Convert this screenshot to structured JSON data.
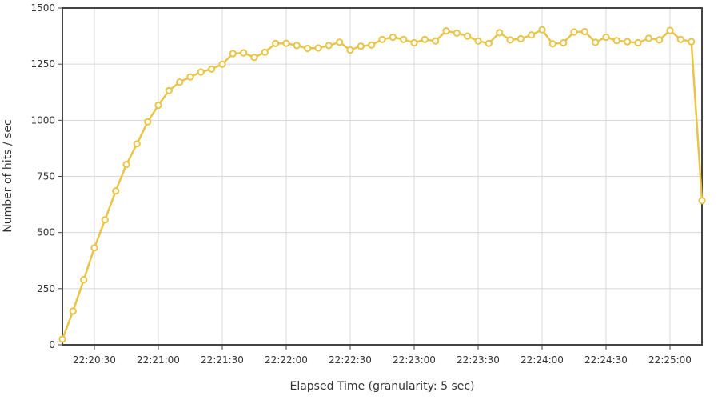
{
  "chart_data": {
    "type": "line",
    "title": "",
    "xlabel": "Elapsed Time (granularity: 5 sec)",
    "ylabel": "Number of hits / sec",
    "ylim": [
      0,
      1500
    ],
    "yticks": [
      "0",
      "250",
      "500",
      "750",
      "1000",
      "1250",
      "1500"
    ],
    "xlim": [
      "22:20:15",
      "22:25:15"
    ],
    "xticks": [
      "22:20:30",
      "22:21:00",
      "22:21:30",
      "22:22:00",
      "22:22:30",
      "22:23:00",
      "22:23:30",
      "22:24:00",
      "22:24:30",
      "22:25:00"
    ],
    "grid": true,
    "legend": "none",
    "series": [
      {
        "color": "#e8c547",
        "x": [
          "22:20:15",
          "22:20:20",
          "22:20:25",
          "22:20:30",
          "22:20:35",
          "22:20:40",
          "22:20:45",
          "22:20:50",
          "22:20:55",
          "22:21:00",
          "22:21:05",
          "22:21:10",
          "22:21:15",
          "22:21:20",
          "22:21:25",
          "22:21:30",
          "22:21:35",
          "22:21:40",
          "22:21:45",
          "22:21:50",
          "22:21:55",
          "22:22:00",
          "22:22:05",
          "22:22:10",
          "22:22:15",
          "22:22:20",
          "22:22:25",
          "22:22:30",
          "22:22:35",
          "22:22:40",
          "22:22:45",
          "22:22:50",
          "22:22:55",
          "22:23:00",
          "22:23:05",
          "22:23:10",
          "22:23:15",
          "22:23:20",
          "22:23:25",
          "22:23:30",
          "22:23:35",
          "22:23:40",
          "22:23:45",
          "22:23:50",
          "22:23:55",
          "22:24:00",
          "22:24:05",
          "22:24:10",
          "22:24:15",
          "22:24:20",
          "22:24:25",
          "22:24:30",
          "22:24:35",
          "22:24:40",
          "22:24:45",
          "22:24:50",
          "22:24:55",
          "22:25:00",
          "22:25:05",
          "22:25:10",
          "22:25:15"
        ],
        "values": [
          25,
          150,
          290,
          432,
          557,
          685,
          803,
          895,
          993,
          1067,
          1132,
          1170,
          1193,
          1215,
          1228,
          1250,
          1297,
          1300,
          1280,
          1303,
          1342,
          1343,
          1333,
          1320,
          1322,
          1333,
          1348,
          1313,
          1330,
          1335,
          1360,
          1370,
          1360,
          1345,
          1360,
          1353,
          1398,
          1388,
          1375,
          1353,
          1342,
          1390,
          1358,
          1363,
          1380,
          1403,
          1340,
          1345,
          1393,
          1395,
          1347,
          1370,
          1355,
          1350,
          1345,
          1365,
          1358,
          1400,
          1360,
          1350,
          642
        ]
      }
    ]
  }
}
